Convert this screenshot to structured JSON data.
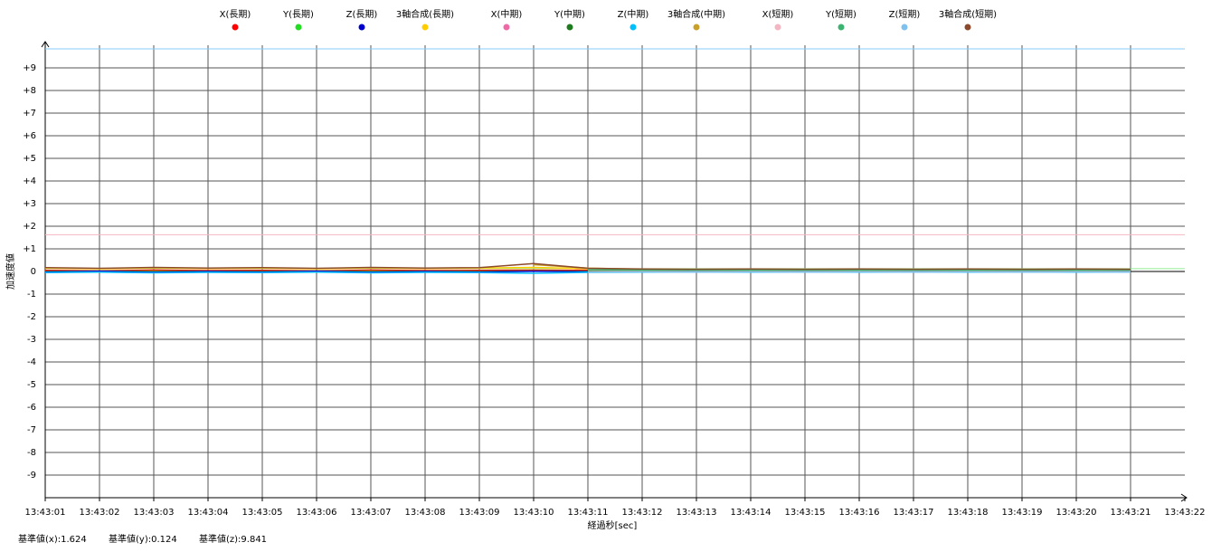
{
  "chart_data": {
    "type": "line",
    "xlabel": "経過秒[sec]",
    "ylabel": "加速度値",
    "xlim": [
      0,
      21
    ],
    "xticks": [
      {
        "value": 0,
        "label": "13:43:01"
      },
      {
        "value": 1,
        "label": "13:43:02"
      },
      {
        "value": 2,
        "label": "13:43:03"
      },
      {
        "value": 3,
        "label": "13:43:04"
      },
      {
        "value": 4,
        "label": "13:43:05"
      },
      {
        "value": 5,
        "label": "13:43:06"
      },
      {
        "value": 6,
        "label": "13:43:07"
      },
      {
        "value": 7,
        "label": "13:43:08"
      },
      {
        "value": 8,
        "label": "13:43:09"
      },
      {
        "value": 9,
        "label": "13:43:10"
      },
      {
        "value": 10,
        "label": "13:43:11"
      },
      {
        "value": 11,
        "label": "13:43:12"
      },
      {
        "value": 12,
        "label": "13:43:13"
      },
      {
        "value": 13,
        "label": "13:43:14"
      },
      {
        "value": 14,
        "label": "13:43:15"
      },
      {
        "value": 15,
        "label": "13:43:16"
      },
      {
        "value": 16,
        "label": "13:43:17"
      },
      {
        "value": 17,
        "label": "13:43:18"
      },
      {
        "value": 18,
        "label": "13:43:19"
      },
      {
        "value": 19,
        "label": "13:43:20"
      },
      {
        "value": 20,
        "label": "13:43:21"
      },
      {
        "value": 21,
        "label": "13:43:22"
      }
    ],
    "ylim": [
      -10,
      10
    ],
    "yticks": [
      {
        "value": 9,
        "label": "+9"
      },
      {
        "value": 8,
        "label": "+8"
      },
      {
        "value": 7,
        "label": "+7"
      },
      {
        "value": 6,
        "label": "+6"
      },
      {
        "value": 5,
        "label": "+5"
      },
      {
        "value": 4,
        "label": "+4"
      },
      {
        "value": 3,
        "label": "+3"
      },
      {
        "value": 2,
        "label": "+2"
      },
      {
        "value": 1,
        "label": "+1"
      },
      0,
      -1,
      -2,
      -3,
      -4,
      -5,
      -6,
      -7,
      -8,
      -9
    ],
    "grid": true,
    "legend": "top",
    "x": [
      0,
      1,
      2,
      3,
      4,
      5,
      6,
      7,
      8,
      9,
      10,
      11,
      12,
      13,
      14,
      15,
      16,
      17,
      18,
      19,
      20
    ],
    "series": [
      {
        "name": "X(長期)",
        "color": "#ff0000",
        "values": [
          0.05,
          0.03,
          0.06,
          0.04,
          0.05,
          0.03,
          0.06,
          0.04,
          0.05,
          0.06,
          0.05,
          null,
          null,
          null,
          null,
          null,
          null,
          null,
          null,
          null,
          null
        ]
      },
      {
        "name": "Y(長期)",
        "color": "#22dd22",
        "values": [
          0.0,
          0.02,
          0.0,
          0.01,
          0.0,
          0.02,
          0.0,
          0.01,
          0.0,
          0.02,
          0.01,
          null,
          null,
          null,
          null,
          null,
          null,
          null,
          null,
          null,
          null
        ]
      },
      {
        "name": "Z(長期)",
        "color": "#0000cc",
        "values": [
          -0.02,
          0.01,
          -0.03,
          0.0,
          -0.02,
          0.01,
          -0.03,
          0.0,
          -0.02,
          0.01,
          -0.01,
          null,
          null,
          null,
          null,
          null,
          null,
          null,
          null,
          null,
          null
        ]
      },
      {
        "name": "3軸合成(長期)",
        "color": "#ffcc00",
        "values": [
          0.15,
          0.12,
          0.16,
          0.13,
          0.15,
          0.12,
          0.16,
          0.13,
          0.15,
          0.18,
          0.12,
          null,
          null,
          null,
          null,
          null,
          null,
          null,
          null,
          null,
          null
        ]
      },
      {
        "name": "X(中期)",
        "color": "#ee6aa7",
        "values": [
          null,
          null,
          null,
          null,
          null,
          null,
          null,
          null,
          null,
          null,
          0.05,
          0.03,
          0.04,
          0.02,
          0.03,
          0.04,
          0.02,
          0.03,
          0.04,
          0.02,
          0.03
        ]
      },
      {
        "name": "Y(中期)",
        "color": "#1e7b1e",
        "values": [
          null,
          null,
          null,
          null,
          null,
          null,
          null,
          null,
          null,
          null,
          0.01,
          0.0,
          0.01,
          0.0,
          0.01,
          0.0,
          0.01,
          0.0,
          0.01,
          0.0,
          0.01
        ]
      },
      {
        "name": "Z(中期)",
        "color": "#00bfff",
        "values": [
          -0.05,
          -0.03,
          -0.06,
          -0.04,
          -0.05,
          -0.03,
          -0.06,
          -0.04,
          -0.05,
          -0.08,
          -0.04,
          -0.03,
          -0.02,
          -0.03,
          -0.02,
          -0.03,
          -0.02,
          -0.03,
          -0.02,
          -0.03,
          -0.02
        ]
      },
      {
        "name": "3軸合成(中期)",
        "color": "#c8a02a",
        "values": [
          null,
          null,
          null,
          null,
          null,
          null,
          null,
          null,
          null,
          0.3,
          0.15,
          0.1,
          0.09,
          0.1,
          0.09,
          0.1,
          0.09,
          0.1,
          0.09,
          0.1,
          0.09
        ]
      },
      {
        "name": "X(短期)",
        "color": "#f4b6c2",
        "values": [
          null,
          null,
          null,
          null,
          null,
          null,
          null,
          null,
          null,
          null,
          0.05,
          0.04,
          0.05,
          0.04,
          0.05,
          0.04,
          0.05,
          0.04,
          0.05,
          0.04,
          0.05
        ]
      },
      {
        "name": "Y(短期)",
        "color": "#3cb371",
        "values": [
          null,
          null,
          null,
          null,
          null,
          null,
          null,
          null,
          null,
          null,
          0.08,
          0.06,
          0.07,
          0.06,
          0.07,
          0.06,
          0.07,
          0.06,
          0.07,
          0.06,
          0.07
        ]
      },
      {
        "name": "Z(短期)",
        "color": "#7ec0ee",
        "values": [
          null,
          null,
          null,
          null,
          null,
          null,
          null,
          null,
          null,
          null,
          -0.03,
          -0.02,
          -0.03,
          -0.02,
          -0.03,
          -0.02,
          -0.03,
          -0.02,
          -0.03,
          -0.02,
          -0.03
        ]
      },
      {
        "name": "3軸合成(短期)",
        "color": "#8b4a2b",
        "values": [
          0.17,
          0.14,
          0.18,
          0.15,
          0.17,
          0.14,
          0.18,
          0.15,
          0.17,
          0.35,
          0.14,
          0.11,
          0.1,
          0.11,
          0.1,
          0.11,
          0.1,
          0.11,
          0.1,
          0.11,
          0.1
        ]
      }
    ],
    "reference_lines": [
      {
        "name": "基準値(x):1.624",
        "value": 1.624,
        "color": "#f4b6c2"
      },
      {
        "name": "基準値(y):0.124",
        "value": 0.124,
        "color": "#90ee90"
      },
      {
        "name": "基準値(z):9.841",
        "value": 9.841,
        "color": "#87cefa"
      }
    ]
  }
}
